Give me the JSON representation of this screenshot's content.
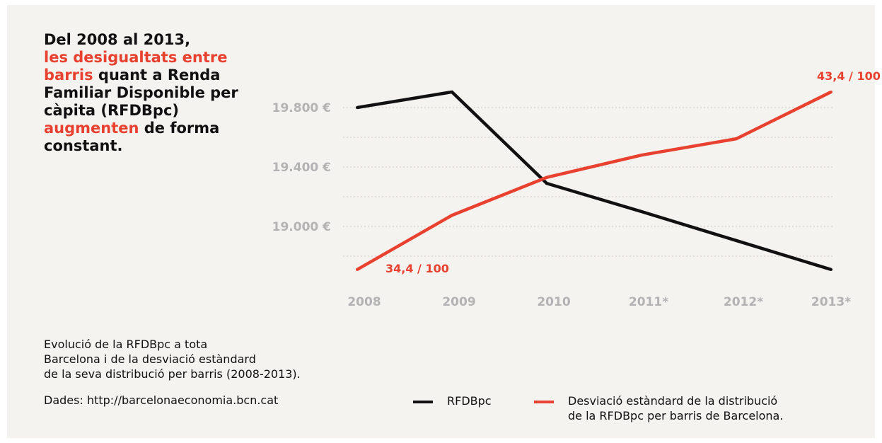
{
  "headline": {
    "part1": "Del 2008 al 2013,",
    "part2": "les desigualtats entre barris",
    "part3": " quant a Renda Familiar Disponible per càpita (RFDBpc) ",
    "part4": "augmenten",
    "part5": " de forma constant."
  },
  "caption": {
    "line1": "Evolució de la RFDBpc a tota",
    "line2": "Barcelona i de la desviació estàndard",
    "line3": "de la seva distribució per barris (2008-2013)."
  },
  "source": "Dades:  http://barcelonaeconomia.bcn.cat",
  "legend": {
    "series1": "RFDBpc",
    "series2_line1": "Desviació estàndard de la distribució",
    "series2_line2": "de la RFDBpc per barris de Barcelona."
  },
  "colors": {
    "accent": "#e8412f",
    "series_black": "#111111",
    "background": "#f5f3f0",
    "tick_text": "#b3b3b3",
    "grid": "#d9d6d2"
  },
  "chart_data": {
    "type": "line",
    "categories": [
      "2008",
      "2009",
      "2010",
      "2011*",
      "2012*",
      "2013*"
    ],
    "ylim": [
      18700,
      19950
    ],
    "y_ticks": [
      19000,
      19400,
      19800
    ],
    "y_tick_labels": [
      "19.000 €",
      "19.400 €",
      "19.800 €"
    ],
    "grid": true,
    "legend_position": "bottom",
    "series": [
      {
        "name": "RFDBpc",
        "color": "#111111",
        "values": [
          19800,
          19905,
          19290,
          19100,
          18905,
          18710
        ]
      },
      {
        "name": "Desviació estàndard de la distribució de la RFDBpc per barris de Barcelona.",
        "color": "#e8412f",
        "values": [
          18710,
          19075,
          19330,
          19480,
          19590,
          19905
        ]
      }
    ],
    "annotations": [
      {
        "series": 1,
        "index": 0,
        "text": "34,4 / 100"
      },
      {
        "series": 1,
        "index": 5,
        "text": "43,4 / 100"
      }
    ]
  }
}
